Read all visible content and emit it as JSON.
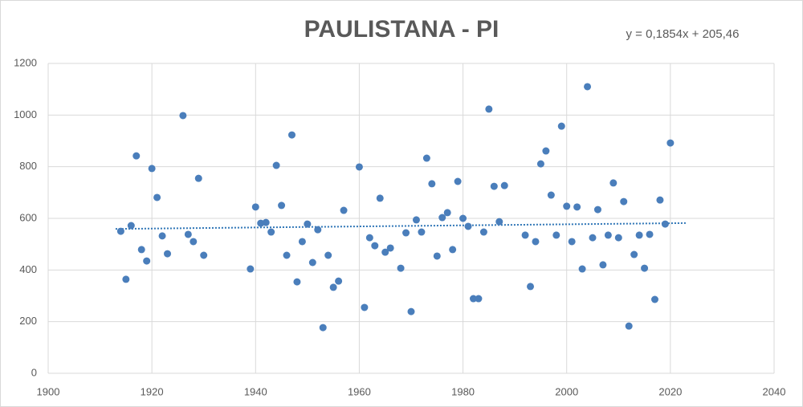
{
  "chart_data": {
    "type": "scatter",
    "title": "PAULISTANA - PI",
    "annotation": "y = 0,1854x + 205,46",
    "color": "#4a7ebb",
    "trendline_color": "#2e75b6",
    "grid": true,
    "xlim": [
      1900,
      2040
    ],
    "xticks": [
      1900,
      1920,
      1940,
      1960,
      1980,
      2000,
      2020,
      2040
    ],
    "ylim": [
      0,
      1200
    ],
    "yticks": [
      0,
      200,
      400,
      600,
      800,
      1000,
      1200
    ],
    "x": [
      1914,
      1915,
      1916,
      1917,
      1918,
      1919,
      1920,
      1921,
      1922,
      1923,
      1926,
      1927,
      1928,
      1929,
      1930,
      1939,
      1940,
      1941,
      1942,
      1943,
      1944,
      1945,
      1946,
      1947,
      1948,
      1949,
      1950,
      1951,
      1952,
      1953,
      1954,
      1955,
      1956,
      1957,
      1960,
      1961,
      1962,
      1963,
      1964,
      1965,
      1966,
      1968,
      1969,
      1970,
      1971,
      1972,
      1973,
      1974,
      1975,
      1976,
      1977,
      1978,
      1979,
      1980,
      1981,
      1982,
      1983,
      1984,
      1985,
      1986,
      1987,
      1988,
      1992,
      1993,
      1994,
      1995,
      1996,
      1997,
      1998,
      1999,
      2000,
      2001,
      2002,
      2003,
      2004,
      2005,
      2006,
      2007,
      2008,
      2009,
      2010,
      2011,
      2012,
      2013,
      2014,
      2015,
      2016,
      2017,
      2018,
      2019,
      2020
    ],
    "values": [
      550,
      364,
      572,
      842,
      479,
      435,
      793,
      681,
      532,
      463,
      998,
      538,
      510,
      755,
      457,
      404,
      644,
      581,
      584,
      547,
      805,
      650,
      457,
      923,
      354,
      510,
      578,
      429,
      556,
      177,
      457,
      333,
      357,
      631,
      799,
      255,
      525,
      494,
      678,
      469,
      485,
      407,
      544,
      239,
      594,
      547,
      833,
      734,
      454,
      603,
      622,
      479,
      743,
      600,
      569,
      289,
      289,
      547,
      1023,
      724,
      587,
      727,
      535,
      336,
      510,
      811,
      861,
      690,
      535,
      957,
      647,
      510,
      644,
      404,
      1110,
      525,
      634,
      420,
      535,
      737,
      525,
      665,
      183,
      460,
      535,
      407,
      538,
      286,
      671,
      578,
      892
    ]
  }
}
